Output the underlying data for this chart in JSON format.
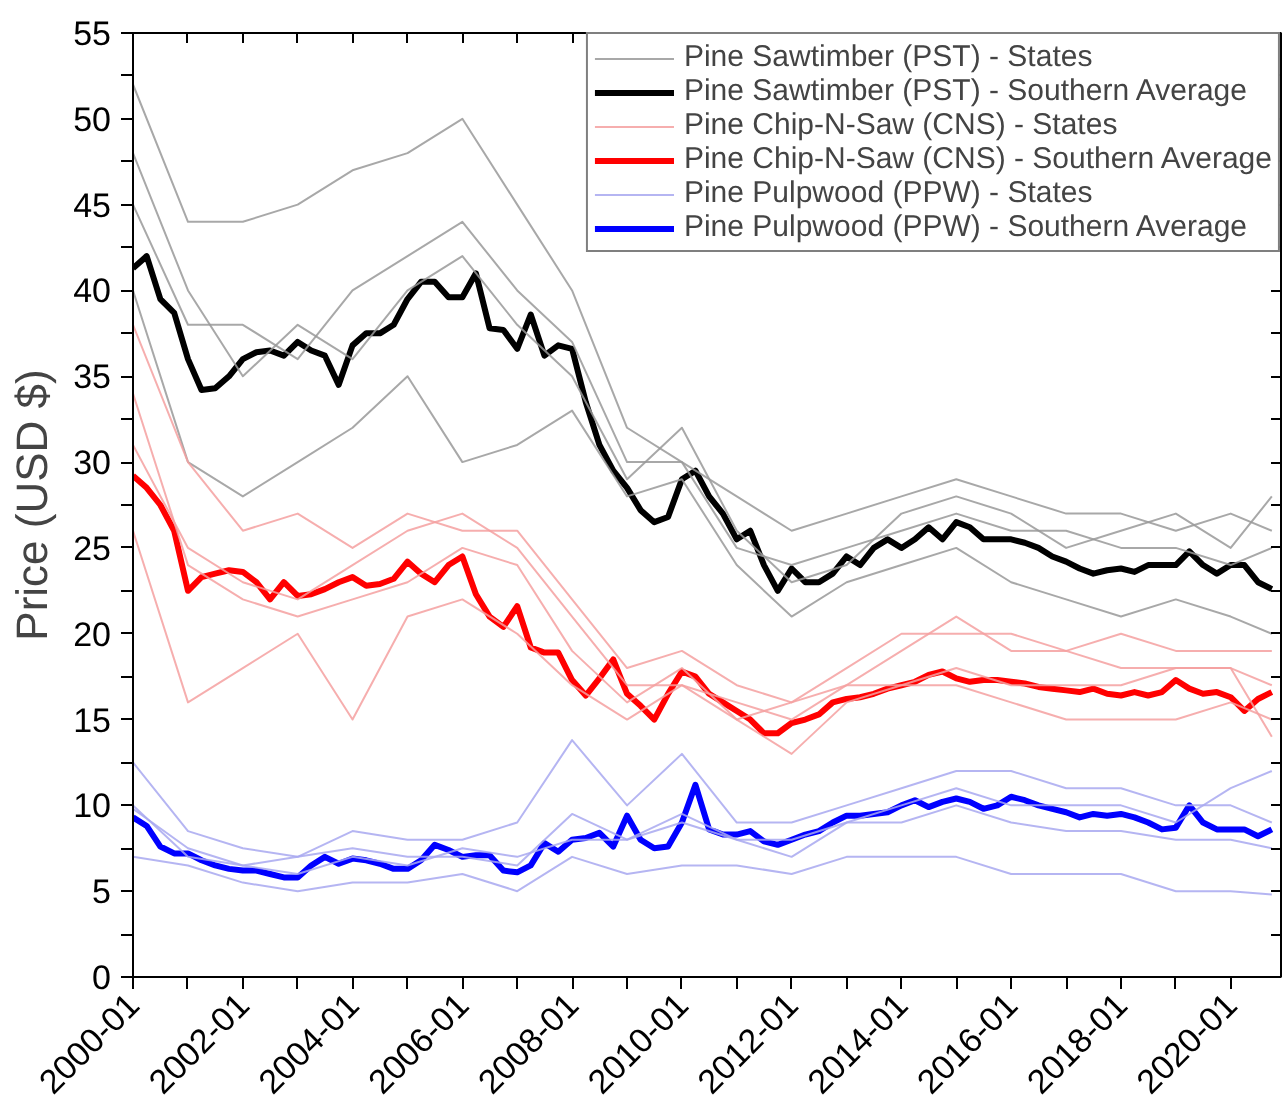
{
  "chart_data": {
    "type": "line",
    "ylabel": "Price (USD $)",
    "x": [
      "2000-01",
      "2001-01",
      "2002-01",
      "2003-01",
      "2004-01",
      "2005-01",
      "2006-01",
      "2007-01",
      "2008-01",
      "2009-01",
      "2010-01",
      "2011-01",
      "2012-01",
      "2013-01",
      "2014-01",
      "2015-01",
      "2016-01",
      "2017-01",
      "2018-01",
      "2019-01",
      "2020-01",
      "2020-10"
    ],
    "xlim": [
      "2000-01",
      "2020-12"
    ],
    "xticks": [
      {
        "value": "2000-01",
        "label": "2000-01"
      },
      {
        "value": "2001-01",
        "label": null
      },
      {
        "value": "2002-01",
        "label": "2002-01"
      },
      {
        "value": "2003-01",
        "label": null
      },
      {
        "value": "2004-01",
        "label": "2004-01"
      },
      {
        "value": "2005-01",
        "label": null
      },
      {
        "value": "2006-01",
        "label": "2006-01"
      },
      {
        "value": "2007-01",
        "label": null
      },
      {
        "value": "2008-01",
        "label": "2008-01"
      },
      {
        "value": "2009-01",
        "label": null
      },
      {
        "value": "2010-01",
        "label": "2010-01"
      },
      {
        "value": "2011-01",
        "label": null
      },
      {
        "value": "2012-01",
        "label": "2012-01"
      },
      {
        "value": "2013-01",
        "label": null
      },
      {
        "value": "2014-01",
        "label": "2014-01"
      },
      {
        "value": "2015-01",
        "label": null
      },
      {
        "value": "2016-01",
        "label": "2016-01"
      },
      {
        "value": "2017-01",
        "label": null
      },
      {
        "value": "2018-01",
        "label": "2018-01"
      },
      {
        "value": "2019-01",
        "label": null
      },
      {
        "value": "2020-01",
        "label": "2020-01"
      }
    ],
    "ylim": [
      0,
      55
    ],
    "yticks": [
      0,
      {
        "value": 2.5,
        "label": null
      },
      5,
      {
        "value": 7.5,
        "label": null
      },
      10,
      {
        "value": 12.5,
        "label": null
      },
      15,
      {
        "value": 17.5,
        "label": null
      },
      20,
      {
        "value": 22.5,
        "label": null
      },
      25,
      {
        "value": 27.5,
        "label": null
      },
      30,
      {
        "value": 32.5,
        "label": null
      },
      35,
      {
        "value": 37.5,
        "label": null
      },
      40,
      {
        "value": 42.5,
        "label": null
      },
      45,
      {
        "value": 47.5,
        "label": null
      },
      50,
      {
        "value": 52.5,
        "label": null
      },
      55
    ],
    "grid": false,
    "legend": "top right",
    "marker": "none",
    "line_style": "solid",
    "series": [
      {
        "name": "Pine Sawtimber (PST) - States",
        "color": "#999999",
        "values": [
          52,
          44,
          44,
          45,
          47,
          48,
          50,
          45,
          40,
          32,
          30,
          28,
          26,
          27,
          28,
          29,
          28,
          27,
          27,
          26,
          27,
          26
        ]
      },
      {
        "name": "Pine Sawtimber (PST) - Southern Average",
        "color": "#000000",
        "x": [
          "2000-01",
          "2000-04",
          "2000-07",
          "2000-10",
          "2001-01",
          "2001-04",
          "2001-07",
          "2001-10",
          "2002-01",
          "2002-04",
          "2002-07",
          "2002-10",
          "2003-01",
          "2003-04",
          "2003-07",
          "2003-10",
          "2004-01",
          "2004-04",
          "2004-07",
          "2004-10",
          "2005-01",
          "2005-04",
          "2005-07",
          "2005-10",
          "2006-01",
          "2006-04",
          "2006-07",
          "2006-10",
          "2007-01",
          "2007-04",
          "2007-07",
          "2007-10",
          "2008-01",
          "2008-04",
          "2008-07",
          "2008-10",
          "2009-01",
          "2009-04",
          "2009-07",
          "2009-10",
          "2010-01",
          "2010-04",
          "2010-07",
          "2010-10",
          "2011-01",
          "2011-04",
          "2011-07",
          "2011-10",
          "2012-01",
          "2012-04",
          "2012-07",
          "2012-10",
          "2013-01",
          "2013-04",
          "2013-07",
          "2013-10",
          "2014-01",
          "2014-04",
          "2014-07",
          "2014-10",
          "2015-01",
          "2015-04",
          "2015-07",
          "2015-10",
          "2016-01",
          "2016-04",
          "2016-07",
          "2016-10",
          "2017-01",
          "2017-04",
          "2017-07",
          "2017-10",
          "2018-01",
          "2018-04",
          "2018-07",
          "2018-10",
          "2019-01",
          "2019-04",
          "2019-07",
          "2019-10",
          "2020-01",
          "2020-04",
          "2020-07",
          "2020-10"
        ],
        "values": [
          41.3,
          42,
          39.5,
          38.7,
          36,
          34.2,
          34.3,
          35,
          36,
          36.4,
          36.5,
          36.2,
          37,
          36.5,
          36.2,
          34.5,
          36.8,
          37.5,
          37.5,
          38,
          39.5,
          40.5,
          40.5,
          39.6,
          39.6,
          41,
          37.8,
          37.7,
          36.6,
          38.6,
          36.2,
          36.8,
          36.6,
          33.5,
          31,
          29.5,
          28.5,
          27.2,
          26.5,
          26.8,
          29,
          29.5,
          28,
          27,
          25.5,
          26,
          24,
          22.5,
          23.8,
          23,
          23,
          23.5,
          24.5,
          24,
          25,
          25.5,
          25,
          25.5,
          26.2,
          25.5,
          26.5,
          26.2,
          25.5,
          25.5,
          25.5,
          25.3,
          25,
          24.5,
          24.2,
          23.8,
          23.5,
          23.7,
          23.8,
          23.6,
          24,
          24,
          24,
          24.8,
          24,
          23.5,
          24,
          24,
          23,
          22.6
        ]
      },
      {
        "name": "Pine Chip-N-Saw (CNS) - States",
        "color": "#f4a0a0",
        "values": [
          38,
          30,
          26,
          27,
          25,
          27,
          26,
          26,
          22,
          18,
          19,
          17,
          16,
          18,
          20,
          20,
          20,
          19,
          20,
          19,
          19,
          19
        ]
      },
      {
        "name": "Pine Chip-N-Saw (CNS) - Southern Average",
        "color": "#ff0000",
        "x": [
          "2000-01",
          "2000-04",
          "2000-07",
          "2000-10",
          "2001-01",
          "2001-04",
          "2001-07",
          "2001-10",
          "2002-01",
          "2002-04",
          "2002-07",
          "2002-10",
          "2003-01",
          "2003-04",
          "2003-07",
          "2003-10",
          "2004-01",
          "2004-04",
          "2004-07",
          "2004-10",
          "2005-01",
          "2005-04",
          "2005-07",
          "2005-10",
          "2006-01",
          "2006-04",
          "2006-07",
          "2006-10",
          "2007-01",
          "2007-04",
          "2007-07",
          "2007-10",
          "2008-01",
          "2008-04",
          "2008-07",
          "2008-10",
          "2009-01",
          "2009-04",
          "2009-07",
          "2009-10",
          "2010-01",
          "2010-04",
          "2010-07",
          "2010-10",
          "2011-01",
          "2011-04",
          "2011-07",
          "2011-10",
          "2012-01",
          "2012-04",
          "2012-07",
          "2012-10",
          "2013-01",
          "2013-04",
          "2013-07",
          "2013-10",
          "2014-01",
          "2014-04",
          "2014-07",
          "2014-10",
          "2015-01",
          "2015-04",
          "2015-07",
          "2015-10",
          "2016-01",
          "2016-04",
          "2016-07",
          "2016-10",
          "2017-01",
          "2017-04",
          "2017-07",
          "2017-10",
          "2018-01",
          "2018-04",
          "2018-07",
          "2018-10",
          "2019-01",
          "2019-04",
          "2019-07",
          "2019-10",
          "2020-01",
          "2020-04",
          "2020-07",
          "2020-10"
        ],
        "values": [
          29.2,
          28.5,
          27.5,
          26,
          22.5,
          23.3,
          23.5,
          23.7,
          23.6,
          23,
          22,
          23,
          22.2,
          22.3,
          22.6,
          23,
          23.3,
          22.8,
          22.9,
          23.2,
          24.2,
          23.5,
          23,
          24,
          24.5,
          22.3,
          21,
          20.4,
          21.6,
          19.2,
          18.9,
          18.9,
          17.3,
          16.4,
          17.4,
          18.5,
          16.5,
          15.8,
          15,
          16.5,
          17.8,
          17.5,
          16.5,
          16,
          15.5,
          15,
          14.2,
          14.2,
          14.8,
          15,
          15.3,
          16,
          16.2,
          16.3,
          16.5,
          16.8,
          17,
          17.2,
          17.6,
          17.8,
          17.4,
          17.2,
          17.3,
          17.3,
          17.2,
          17.1,
          16.9,
          16.8,
          16.7,
          16.6,
          16.8,
          16.5,
          16.4,
          16.6,
          16.4,
          16.6,
          17.3,
          16.8,
          16.5,
          16.6,
          16.3,
          15.5,
          16.2,
          16.6
        ]
      },
      {
        "name": "Pine Pulpwood (PPW) - States",
        "color": "#a8a8f0",
        "values": [
          12.5,
          8.5,
          7.5,
          7,
          8.5,
          8,
          8,
          9,
          13.8,
          10,
          13,
          9,
          9,
          10,
          11,
          12,
          12,
          11,
          11,
          10,
          10,
          9
        ]
      },
      {
        "name": "Pine Pulpwood (PPW) - Southern Average",
        "color": "#0000ff",
        "x": [
          "2000-01",
          "2000-04",
          "2000-07",
          "2000-10",
          "2001-01",
          "2001-04",
          "2001-07",
          "2001-10",
          "2002-01",
          "2002-04",
          "2002-07",
          "2002-10",
          "2003-01",
          "2003-04",
          "2003-07",
          "2003-10",
          "2004-01",
          "2004-04",
          "2004-07",
          "2004-10",
          "2005-01",
          "2005-04",
          "2005-07",
          "2005-10",
          "2006-01",
          "2006-04",
          "2006-07",
          "2006-10",
          "2007-01",
          "2007-04",
          "2007-07",
          "2007-10",
          "2008-01",
          "2008-04",
          "2008-07",
          "2008-10",
          "2009-01",
          "2009-04",
          "2009-07",
          "2009-10",
          "2010-01",
          "2010-04",
          "2010-07",
          "2010-10",
          "2011-01",
          "2011-04",
          "2011-07",
          "2011-10",
          "2012-01",
          "2012-04",
          "2012-07",
          "2012-10",
          "2013-01",
          "2013-04",
          "2013-07",
          "2013-10",
          "2014-01",
          "2014-04",
          "2014-07",
          "2014-10",
          "2015-01",
          "2015-04",
          "2015-07",
          "2015-10",
          "2016-01",
          "2016-04",
          "2016-07",
          "2016-10",
          "2017-01",
          "2017-04",
          "2017-07",
          "2017-10",
          "2018-01",
          "2018-04",
          "2018-07",
          "2018-10",
          "2019-01",
          "2019-04",
          "2019-07",
          "2019-10",
          "2020-01",
          "2020-04",
          "2020-07",
          "2020-10"
        ],
        "values": [
          9.3,
          8.8,
          7.6,
          7.2,
          7.2,
          6.8,
          6.5,
          6.3,
          6.2,
          6.2,
          6,
          5.8,
          5.8,
          6.5,
          7,
          6.6,
          6.9,
          6.8,
          6.6,
          6.3,
          6.3,
          6.8,
          7.7,
          7.4,
          7,
          7.1,
          7.1,
          6.2,
          6.1,
          6.5,
          7.8,
          7.3,
          8,
          8.1,
          8.4,
          7.6,
          9.4,
          8,
          7.5,
          7.6,
          9,
          11.2,
          8.6,
          8.3,
          8.3,
          8.5,
          7.9,
          7.7,
          8,
          8.3,
          8.5,
          9,
          9.4,
          9.4,
          9.5,
          9.6,
          10,
          10.3,
          9.9,
          10.2,
          10.4,
          10.2,
          9.8,
          10,
          10.5,
          10.3,
          10,
          9.8,
          9.6,
          9.3,
          9.5,
          9.4,
          9.5,
          9.3,
          9,
          8.6,
          8.7,
          10,
          9,
          8.6,
          8.6,
          8.6,
          8.2,
          8.6
        ]
      },
      {
        "name": null,
        "color": "#999999",
        "values": [
          45,
          38,
          38,
          36,
          40,
          42,
          44,
          40,
          37,
          30,
          30,
          25,
          24,
          25,
          26,
          27,
          26,
          26,
          25,
          25,
          24,
          25
        ]
      },
      {
        "name": null,
        "color": "#999999",
        "values": [
          40,
          30,
          28,
          30,
          32,
          35,
          30,
          31,
          33,
          28,
          29,
          24,
          21,
          23,
          24,
          25,
          23,
          22,
          21,
          22,
          21,
          20
        ]
      },
      {
        "name": null,
        "color": "#999999",
        "values": [
          48,
          40,
          35,
          38,
          36,
          40,
          42,
          38,
          35,
          29,
          32,
          26,
          23,
          24,
          27,
          28,
          27,
          25,
          26,
          27,
          25,
          28
        ]
      },
      {
        "name": null,
        "color": "#f4a0a0",
        "values": [
          34,
          24,
          22,
          21,
          22,
          23,
          25,
          24,
          19,
          16,
          18,
          15,
          13,
          16,
          17,
          18,
          17,
          17,
          17,
          18,
          18,
          17
        ]
      },
      {
        "name": null,
        "color": "#f4a0a0",
        "values": [
          26,
          16,
          18,
          20,
          15,
          21,
          22,
          20,
          17,
          15,
          17,
          15,
          16,
          17,
          17,
          17,
          16,
          15,
          15,
          15,
          16,
          15
        ]
      },
      {
        "name": null,
        "color": "#f4a0a0",
        "values": [
          31,
          25,
          23,
          22,
          24,
          26,
          27,
          25,
          21,
          17,
          17,
          16,
          15,
          17,
          19,
          21,
          19,
          19,
          18,
          18,
          18,
          14
        ]
      },
      {
        "name": null,
        "color": "#a8a8f0",
        "values": [
          10,
          7,
          6.5,
          6,
          7,
          6.5,
          7.5,
          7,
          8,
          8,
          9,
          8,
          7,
          9,
          10,
          11,
          10,
          10,
          10,
          9,
          11,
          12
        ]
      },
      {
        "name": null,
        "color": "#a8a8f0",
        "values": [
          7,
          6.5,
          5.5,
          5,
          5.5,
          5.5,
          6,
          5,
          7,
          6,
          6.5,
          6.5,
          6,
          7,
          7,
          7,
          6,
          6,
          6,
          5,
          5,
          4.8
        ]
      },
      {
        "name": null,
        "color": "#a8a8f0",
        "values": [
          9.8,
          7.5,
          6.5,
          7,
          7.5,
          7,
          7,
          6.5,
          9.5,
          8,
          9.5,
          8,
          8,
          9,
          9,
          10,
          9,
          8.5,
          8.5,
          8,
          8,
          7.5
        ]
      }
    ]
  }
}
